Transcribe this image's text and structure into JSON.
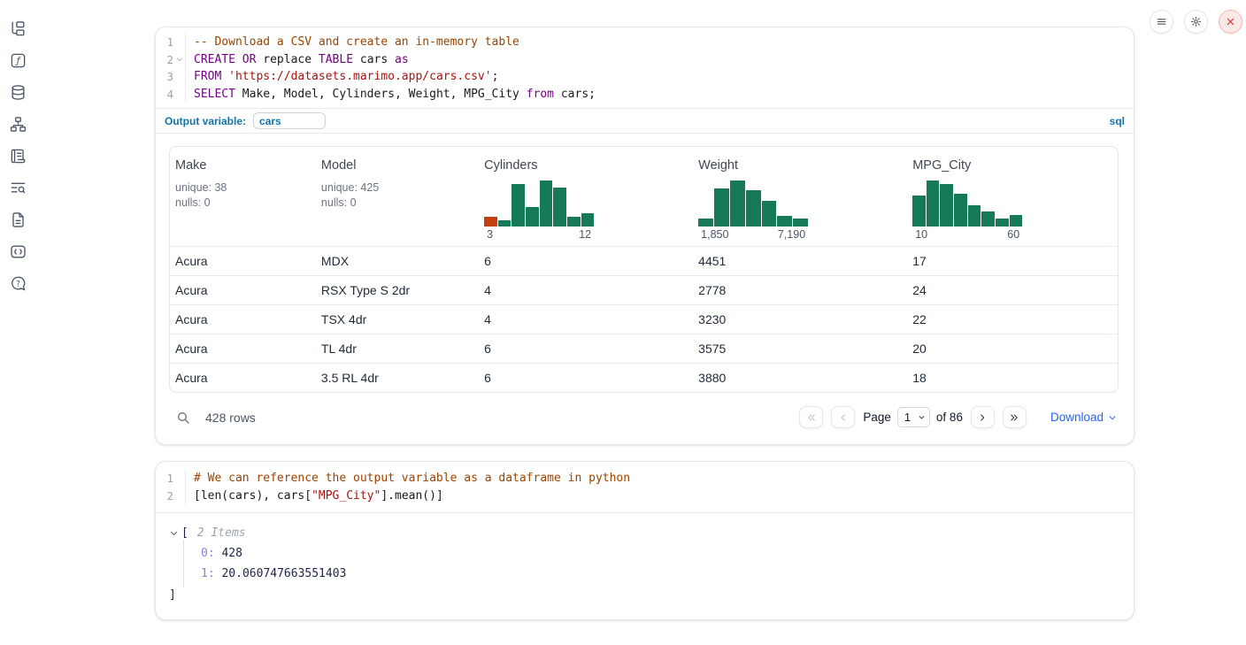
{
  "colors": {
    "accent_blue": "#1272a8",
    "link_blue": "#2563eb",
    "histogram_teal": "#177a56",
    "histogram_orange": "#c2410c",
    "keyword_purple": "#770088",
    "comment_orange": "#994400",
    "string_red": "#aa1111",
    "close_red": "#dc2626"
  },
  "sidebar_icons": [
    "file-tree-icon",
    "function-square-icon",
    "database-icon",
    "network-icon",
    "scroll-text-icon",
    "list-search-icon",
    "file-text-icon",
    "code-snippet-icon",
    "help-bubble-icon"
  ],
  "window_controls": [
    "hamburger-icon",
    "gear-icon",
    "close-icon"
  ],
  "sql_cell": {
    "language_label": "sql",
    "output_variable_label": "Output variable:",
    "output_variable_value": "cars",
    "lines": [
      {
        "num": "1",
        "tokens": [
          {
            "c": "com",
            "t": "-- Download a CSV and create an in-memory table"
          }
        ]
      },
      {
        "num": "2",
        "fold": true,
        "tokens": [
          {
            "c": "kw",
            "t": "CREATE"
          },
          {
            "c": "pl",
            "t": " "
          },
          {
            "c": "kw",
            "t": "OR"
          },
          {
            "c": "pl",
            "t": " replace "
          },
          {
            "c": "kw",
            "t": "TABLE"
          },
          {
            "c": "pl",
            "t": " cars "
          },
          {
            "c": "kw",
            "t": "as"
          }
        ]
      },
      {
        "num": "3",
        "tokens": [
          {
            "c": "kw",
            "t": "FROM"
          },
          {
            "c": "pl",
            "t": " "
          },
          {
            "c": "str",
            "t": "'https://datasets.marimo.app/cars.csv'"
          },
          {
            "c": "pl",
            "t": ";"
          }
        ]
      },
      {
        "num": "4",
        "tokens": [
          {
            "c": "kw",
            "t": "SELECT"
          },
          {
            "c": "pl",
            "t": " Make, Model, Cylinders, Weight, MPG_City "
          },
          {
            "c": "kw",
            "t": "from"
          },
          {
            "c": "pl",
            "t": " cars;"
          }
        ]
      }
    ]
  },
  "table": {
    "columns": [
      {
        "name": "Make",
        "stats": [
          "unique: 38",
          "nulls: 0"
        ]
      },
      {
        "name": "Model",
        "stats": [
          "unique: 425",
          "nulls: 0"
        ]
      },
      {
        "name": "Cylinders",
        "histogram": {
          "type": "bar",
          "bars": [
            0.21,
            0.14,
            0.92,
            0.43,
            1.0,
            0.85,
            0.21,
            0.28
          ],
          "highlight_first": true,
          "axis_labels": [
            "3",
            "12"
          ]
        }
      },
      {
        "name": "Weight",
        "histogram": {
          "type": "bar",
          "bars": [
            0.18,
            0.82,
            1.0,
            0.78,
            0.55,
            0.24,
            0.18
          ],
          "highlight_first": false,
          "axis_labels": [
            "1,850",
            "7,190"
          ]
        }
      },
      {
        "name": "MPG_City",
        "histogram": {
          "type": "bar",
          "bars": [
            0.67,
            1.0,
            0.93,
            0.72,
            0.46,
            0.33,
            0.18,
            0.25
          ],
          "highlight_first": false,
          "axis_labels": [
            "10",
            "60"
          ]
        }
      }
    ],
    "rows": [
      [
        "Acura",
        "MDX",
        "6",
        "4451",
        "17"
      ],
      [
        "Acura",
        "RSX Type S 2dr",
        "4",
        "2778",
        "24"
      ],
      [
        "Acura",
        "TSX 4dr",
        "4",
        "3230",
        "22"
      ],
      [
        "Acura",
        "TL 4dr",
        "6",
        "3575",
        "20"
      ],
      [
        "Acura",
        "3.5 RL 4dr",
        "6",
        "3880",
        "18"
      ]
    ],
    "footer": {
      "row_count": "428 rows",
      "page_label": "Page",
      "page_value": "1",
      "total_label": "of 86",
      "download_label": "Download"
    }
  },
  "python_cell": {
    "lines": [
      {
        "num": "1",
        "tokens": [
          {
            "c": "com",
            "t": "# We can reference the output variable as a dataframe in python"
          }
        ]
      },
      {
        "num": "2",
        "tokens": [
          {
            "c": "pl",
            "t": "[len(cars), cars["
          },
          {
            "c": "str",
            "t": "\"MPG_City\""
          },
          {
            "c": "pl",
            "t": "].mean()]"
          }
        ]
      }
    ]
  },
  "result_tree": {
    "open_bracket": "[",
    "summary": "2 Items",
    "entries": [
      {
        "key": "0:",
        "value": "428"
      },
      {
        "key": "1:",
        "value": "20.060747663551403"
      }
    ],
    "close_bracket": "]"
  }
}
